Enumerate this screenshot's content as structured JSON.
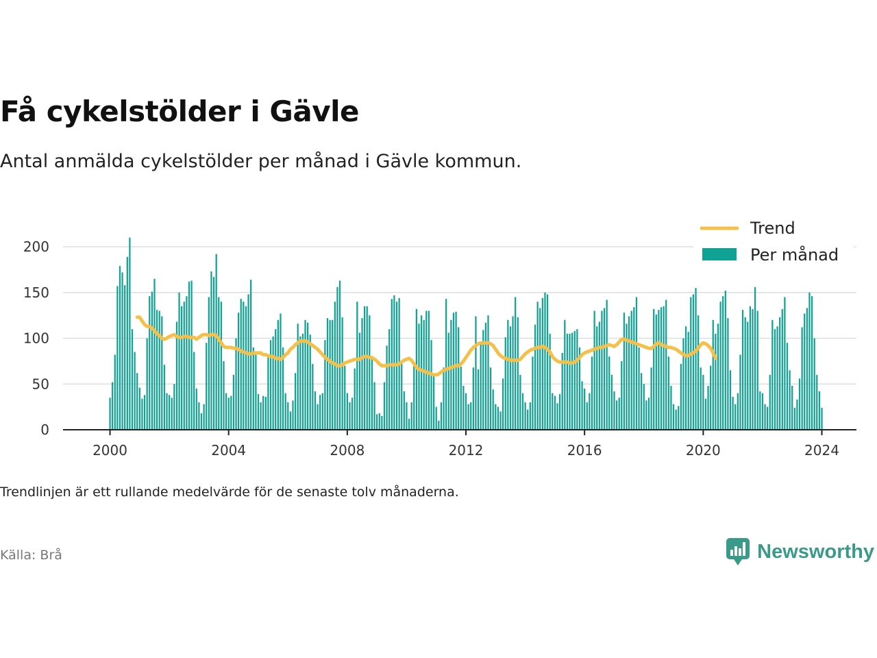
{
  "header": {
    "title": "Få cykelstölder i Gävle",
    "subtitle": "Antal anmälda cykelstölder per månad i Gävle kommun."
  },
  "footer": {
    "note": "Trendlinjen är ett rullande medelvärde för de senaste tolv månaderna.",
    "source": "Källa: Brå",
    "brand": "Newsworthy"
  },
  "colors": {
    "bars": "#10a294",
    "trend": "#f5c04a",
    "grid": "#dddddd",
    "axis": "#222222",
    "brand": "#3a9a8a"
  },
  "icons": {
    "brand_logo": "bar-chart-speech-bubble-icon"
  },
  "chart_data": {
    "type": "bar",
    "title": "Få cykelstölder i Gävle",
    "subtitle": "Antal anmälda cykelstölder per månad i Gävle kommun.",
    "xlabel": "",
    "ylabel": "",
    "start_month": "2000-01",
    "end_month": "2024-01",
    "xlim": [
      "1998-06",
      "2025-03"
    ],
    "ylim": [
      0,
      230
    ],
    "x_ticks": [
      "2000",
      "2004",
      "2008",
      "2012",
      "2016",
      "2020",
      "2024"
    ],
    "y_ticks": [
      0,
      50,
      100,
      150,
      200
    ],
    "grid": true,
    "legend_position": "top-right",
    "series": [
      {
        "name": "Per månad",
        "type": "bar",
        "values": [
          35,
          52,
          82,
          157,
          179,
          172,
          158,
          189,
          210,
          110,
          85,
          62,
          46,
          34,
          38,
          100,
          146,
          151,
          165,
          131,
          130,
          124,
          71,
          40,
          38,
          35,
          50,
          118,
          150,
          135,
          140,
          146,
          162,
          163,
          85,
          45,
          30,
          18,
          28,
          95,
          145,
          173,
          167,
          192,
          145,
          140,
          75,
          40,
          35,
          37,
          60,
          100,
          128,
          143,
          140,
          135,
          148,
          164,
          90,
          82,
          39,
          30,
          37,
          36,
          80,
          98,
          102,
          110,
          120,
          127,
          90,
          40,
          30,
          20,
          32,
          62,
          116,
          102,
          105,
          120,
          117,
          104,
          72,
          42,
          28,
          38,
          40,
          98,
          122,
          120,
          120,
          140,
          156,
          163,
          123,
          70,
          40,
          30,
          35,
          67,
          140,
          106,
          122,
          135,
          135,
          125,
          80,
          52,
          17,
          18,
          15,
          52,
          92,
          110,
          143,
          147,
          140,
          144,
          72,
          42,
          30,
          12,
          30,
          70,
          132,
          116,
          125,
          120,
          130,
          130,
          98,
          60,
          25,
          10,
          30,
          68,
          143,
          106,
          120,
          128,
          129,
          112,
          69,
          48,
          40,
          28,
          30,
          68,
          124,
          66,
          94,
          109,
          117,
          125,
          68,
          44,
          28,
          25,
          20,
          56,
          101,
          120,
          113,
          124,
          145,
          123,
          60,
          40,
          30,
          22,
          30,
          80,
          115,
          140,
          133,
          144,
          150,
          148,
          105,
          40,
          37,
          29,
          39,
          84,
          120,
          105,
          105,
          106,
          108,
          110,
          90,
          53,
          45,
          30,
          40,
          80,
          130,
          113,
          118,
          130,
          133,
          142,
          80,
          60,
          42,
          32,
          35,
          75,
          128,
          116,
          124,
          130,
          134,
          145,
          90,
          62,
          50,
          32,
          35,
          68,
          132,
          126,
          131,
          134,
          135,
          142,
          80,
          48,
          28,
          22,
          26,
          72,
          100,
          113,
          107,
          145,
          148,
          155,
          125,
          68,
          60,
          34,
          48,
          70,
          120,
          105,
          116,
          140,
          146,
          152,
          122,
          65,
          36,
          28,
          40,
          82,
          131,
          123,
          118,
          135,
          132,
          156,
          130,
          42,
          40,
          28,
          25,
          60,
          120,
          110,
          113,
          123,
          132,
          145,
          95,
          65,
          48,
          24,
          33,
          56,
          112,
          127,
          133,
          150,
          146,
          100,
          60,
          42,
          24
        ]
      },
      {
        "name": "Trend",
        "type": "line",
        "start_month": "2000-12",
        "values": [
          123,
          123,
          119,
          115,
          113,
          113,
          111,
          108,
          105,
          103,
          100,
          99,
          100,
          102,
          103,
          104,
          102,
          101,
          101,
          102,
          102,
          101,
          101,
          101,
          99,
          101,
          103,
          104,
          104,
          103,
          104,
          104,
          103,
          99,
          95,
          91,
          90,
          90,
          90,
          89,
          89,
          88,
          86,
          85,
          84,
          83,
          83,
          84,
          84,
          84,
          84,
          82,
          82,
          81,
          80,
          80,
          78,
          78,
          77,
          79,
          82,
          84,
          88,
          90,
          93,
          95,
          97,
          97,
          97,
          96,
          94,
          92,
          90,
          88,
          85,
          82,
          79,
          77,
          75,
          73,
          72,
          70,
          70,
          71,
          73,
          74,
          75,
          76,
          77,
          77,
          77,
          79,
          80,
          80,
          79,
          79,
          77,
          75,
          72,
          70,
          70,
          70,
          71,
          71,
          71,
          71,
          72,
          74,
          76,
          77,
          78,
          76,
          72,
          68,
          66,
          65,
          64,
          63,
          62,
          61,
          60,
          60,
          61,
          63,
          65,
          66,
          67,
          68,
          69,
          70,
          70,
          72,
          75,
          79,
          83,
          87,
          90,
          92,
          94,
          95,
          95,
          95,
          95,
          94,
          92,
          88,
          84,
          81,
          79,
          78,
          77,
          76,
          76,
          76,
          76,
          77,
          80,
          83,
          85,
          87,
          88,
          89,
          90,
          90,
          91,
          90,
          88,
          85,
          80,
          77,
          75,
          74,
          74,
          74,
          74,
          73,
          73,
          74,
          76,
          79,
          82,
          84,
          85,
          86,
          87,
          88,
          89,
          90,
          90,
          91,
          92,
          93,
          92,
          91,
          93,
          96,
          99,
          99,
          98,
          97,
          96,
          95,
          94,
          93,
          92,
          91,
          90,
          89,
          89,
          91,
          94,
          95,
          93,
          92,
          91,
          90,
          90,
          89,
          88,
          86,
          84,
          82,
          81,
          81,
          83,
          84,
          86,
          89,
          93,
          95,
          94,
          92,
          89,
          84,
          78
        ]
      }
    ]
  }
}
